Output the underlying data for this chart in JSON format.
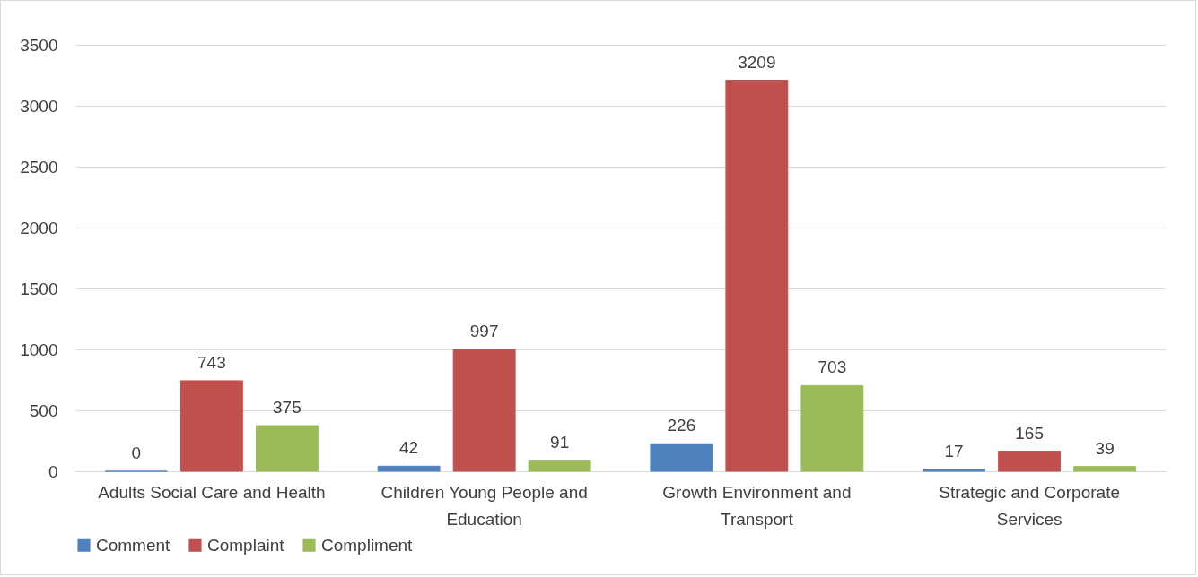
{
  "chart_data": {
    "type": "bar",
    "categories": [
      "Adults Social Care and Health",
      "Children Young People and Education",
      "Growth Environment and Transport",
      "Strategic and Corporate Services"
    ],
    "series": [
      {
        "name": "Comment",
        "color": "#4f81bd",
        "values": [
          0,
          42,
          226,
          17
        ]
      },
      {
        "name": "Complaint",
        "color": "#c0504d",
        "values": [
          743,
          997,
          3209,
          165
        ]
      },
      {
        "name": "Compliment",
        "color": "#9bbb59",
        "values": [
          375,
          91,
          703,
          39
        ]
      }
    ],
    "ylim": [
      0,
      3500
    ],
    "yticks": [
      0,
      500,
      1000,
      1500,
      2000,
      2500,
      3000,
      3500
    ],
    "grid": "y",
    "legend": "bottom",
    "data_labels": true
  }
}
